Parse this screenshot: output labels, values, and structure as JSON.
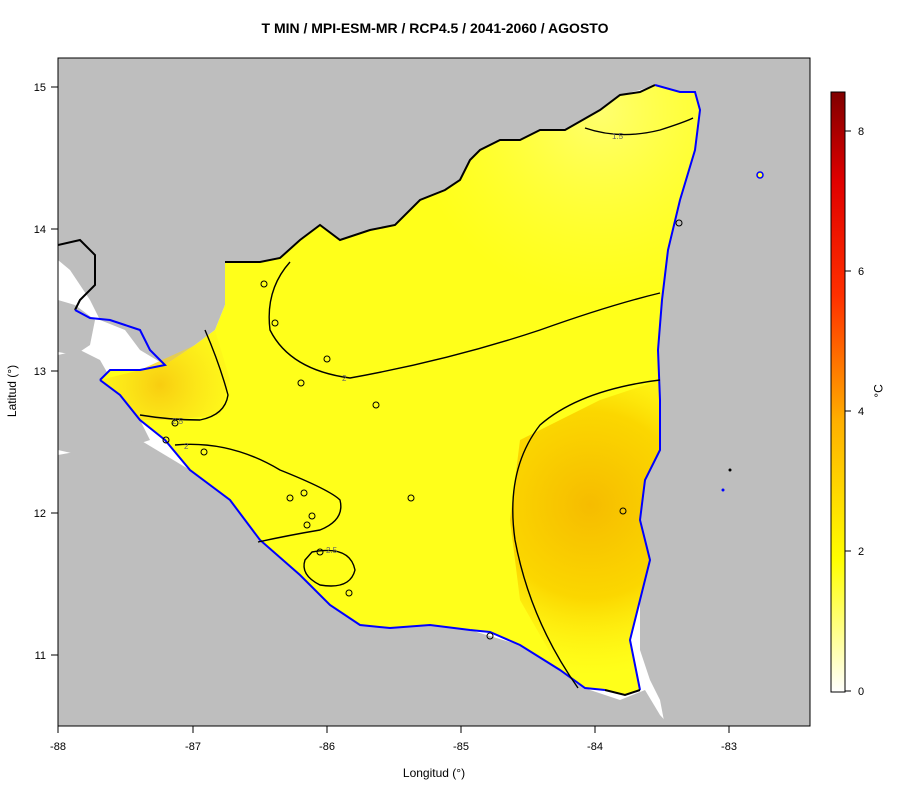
{
  "title": "T MIN / MPI-ESM-MR / RCP4.5 / 2041-2060 / AGOSTO",
  "x_axis": {
    "label": "Longitud (°)",
    "ticks": [
      "-88",
      "-87",
      "-86",
      "-85",
      "-84",
      "-83"
    ]
  },
  "y_axis": {
    "label": "Latitud (°)",
    "ticks": [
      "11",
      "12",
      "13",
      "14",
      "15"
    ]
  },
  "colorbar": {
    "unit": "°C",
    "ticks": [
      "0",
      "2",
      "4",
      "6",
      "8"
    ]
  },
  "contour_labels": [
    "1.5",
    "2",
    "2.5",
    "2",
    "2.5"
  ],
  "colors": {
    "land_outside": "#bebebe",
    "coast": "#0000ff",
    "low": "#ffff33",
    "high": "#f5b800"
  }
}
